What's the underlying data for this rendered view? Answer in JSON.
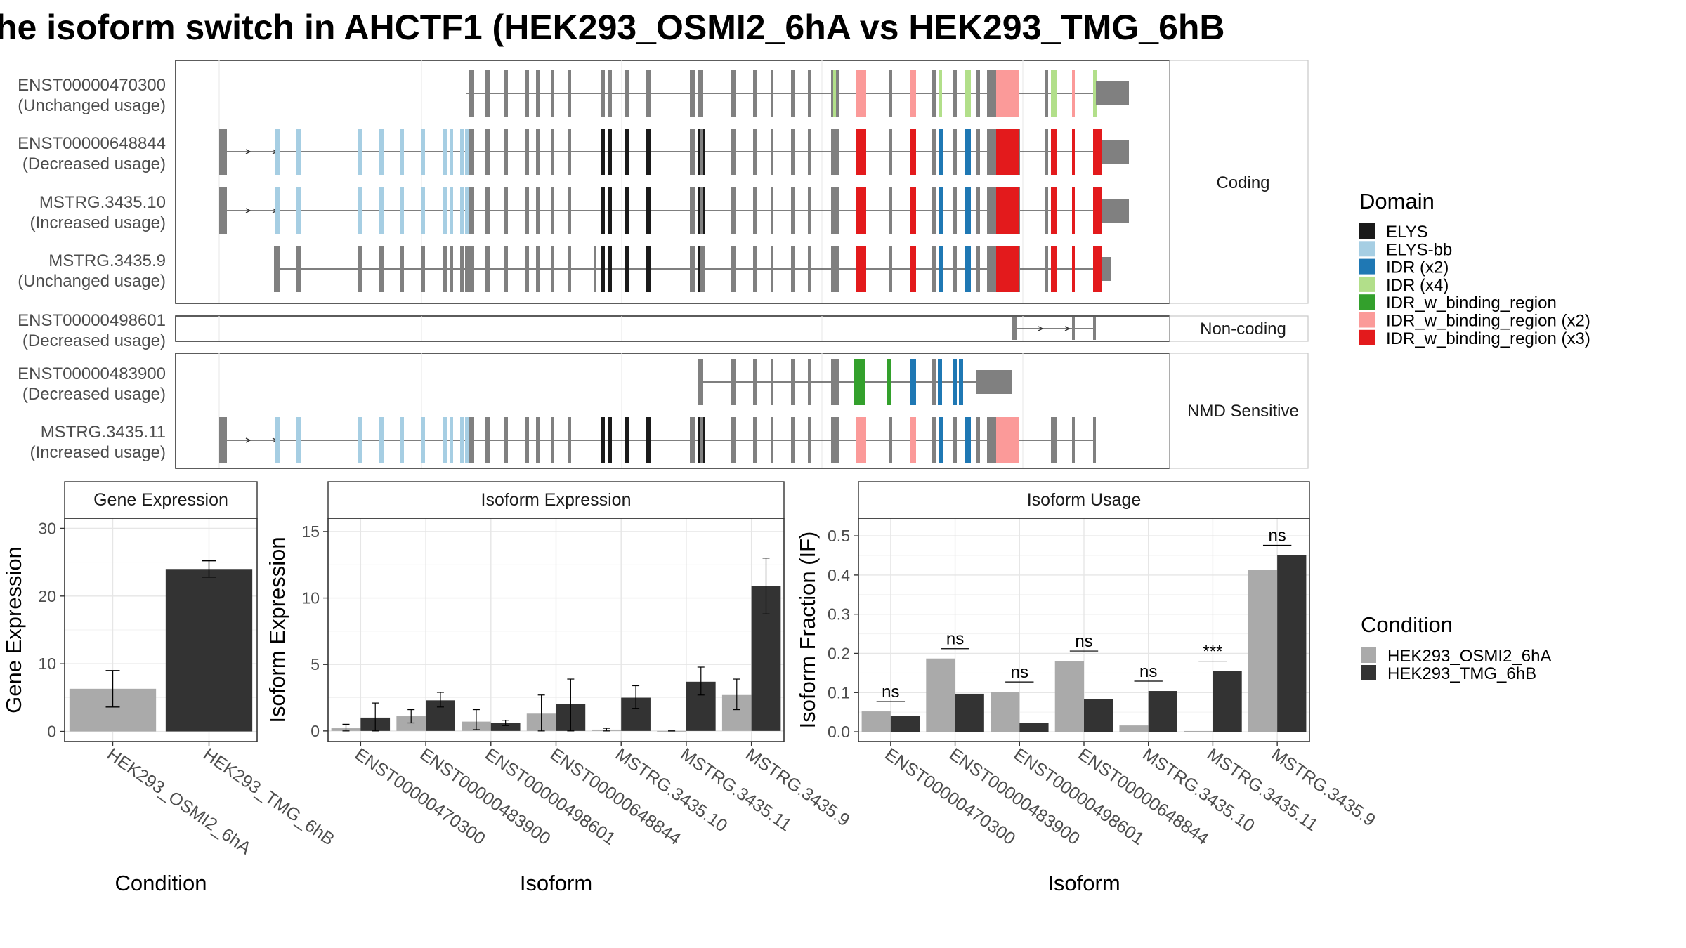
{
  "title": "he isoform switch in AHCTF1 (HEK293_OSMI2_6hA vs HEK293_TMG_6hB",
  "colors": {
    "ELYS": "#1a1a1a",
    "ELYS-bb": "#a6cee3",
    "IDR (x2)": "#1f78b4",
    "IDR (x4)": "#b2df8a",
    "IDR_w_binding_region": "#33a02c",
    "IDR_w_binding_region (x2)": "#fb9a99",
    "IDR_w_binding_region (x3)": "#e31a1c",
    "exon": "#808080",
    "osmi": "#aaaaaa",
    "tmg": "#333333"
  },
  "structure": {
    "groups": [
      "Coding",
      "Non-coding",
      "NMD Sensitive"
    ],
    "transcripts": [
      {
        "id": "ENST00000470300",
        "note": "(Unchanged usage)",
        "group": "Coding",
        "pattern": "short1"
      },
      {
        "id": "ENST00000648844",
        "note": "(Decreased usage)",
        "group": "Coding",
        "pattern": "full"
      },
      {
        "id": "MSTRG.3435.10",
        "note": "(Increased usage)",
        "group": "Coding",
        "pattern": "full"
      },
      {
        "id": "MSTRG.3435.9",
        "note": "(Unchanged usage)",
        "group": "Coding",
        "pattern": "nine"
      },
      {
        "id": "ENST00000498601",
        "note": "(Decreased usage)",
        "group": "Non-coding",
        "pattern": "noncoding"
      },
      {
        "id": "ENST00000483900",
        "note": "(Decreased usage)",
        "group": "NMD Sensitive",
        "pattern": "nmd1"
      },
      {
        "id": "MSTRG.3435.11",
        "note": "(Increased usage)",
        "group": "NMD Sensitive",
        "pattern": "full11"
      }
    ]
  },
  "legend_domain": {
    "title": "Domain",
    "items": [
      "ELYS",
      "ELYS-bb",
      "IDR (x2)",
      "IDR (x4)",
      "IDR_w_binding_region",
      "IDR_w_binding_region (x2)",
      "IDR_w_binding_region (x3)"
    ]
  },
  "legend_condition": {
    "title": "Condition",
    "items": [
      "HEK293_OSMI2_6hA",
      "HEK293_TMG_6hB"
    ]
  },
  "chart_data": [
    {
      "type": "bar",
      "title": "Gene Expression",
      "xlabel": "Condition",
      "ylabel": "Gene Expression",
      "categories": [
        "HEK293_OSMI2_6hA",
        "HEK293_TMG_6hB"
      ],
      "values": [
        6.3,
        24.0
      ],
      "error": [
        [
          3.6,
          9.0
        ],
        [
          22.8,
          25.2
        ]
      ],
      "ylim": [
        -1.5,
        31.5
      ],
      "yticks": [
        0,
        10,
        20,
        30
      ]
    },
    {
      "type": "bar",
      "title": "Isoform Expression",
      "xlabel": "Isoform",
      "ylabel": "Isoform Expression",
      "categories": [
        "ENST00000470300",
        "ENST00000483900",
        "ENST00000498601",
        "ENST00000648844",
        "MSTRG.3435.10",
        "MSTRG.3435.11",
        "MSTRG.3435.9"
      ],
      "series": [
        {
          "name": "HEK293_OSMI2_6hA",
          "values": [
            0.2,
            1.1,
            0.7,
            1.3,
            0.1,
            0.0,
            2.7
          ],
          "error": [
            [
              0.0,
              0.5
            ],
            [
              0.6,
              1.6
            ],
            [
              0.1,
              1.6
            ],
            [
              0.0,
              2.7
            ],
            [
              0.0,
              0.2
            ],
            [
              0.0,
              0.0
            ],
            [
              1.6,
              3.9
            ]
          ]
        },
        {
          "name": "HEK293_TMG_6hB",
          "values": [
            1.0,
            2.3,
            0.6,
            2.0,
            2.5,
            3.7,
            10.9
          ],
          "error": [
            [
              0.0,
              2.1
            ],
            [
              1.8,
              2.9
            ],
            [
              0.4,
              0.8
            ],
            [
              0.0,
              3.9
            ],
            [
              1.7,
              3.4
            ],
            [
              2.7,
              4.8
            ],
            [
              8.8,
              13.0
            ]
          ]
        }
      ],
      "ylim": [
        -0.8,
        16.0
      ],
      "yticks": [
        0,
        5,
        10,
        15
      ]
    },
    {
      "type": "bar",
      "title": "Isoform Usage",
      "xlabel": "Isoform",
      "ylabel": "Isoform Fraction (IF)",
      "categories": [
        "ENST00000470300",
        "ENST00000483900",
        "ENST00000498601",
        "ENST00000648844",
        "MSTRG.3435.10",
        "MSTRG.3435.11",
        "MSTRG.3435.9"
      ],
      "series": [
        {
          "name": "HEK293_OSMI2_6hA",
          "values": [
            0.052,
            0.187,
            0.102,
            0.181,
            0.016,
            0.002,
            0.414
          ]
        },
        {
          "name": "HEK293_TMG_6hB",
          "values": [
            0.04,
            0.097,
            0.023,
            0.084,
            0.104,
            0.155,
            0.451
          ]
        }
      ],
      "significance": [
        "ns",
        "ns",
        "ns",
        "ns",
        "ns",
        "***",
        "ns"
      ],
      "ylim": [
        -0.025,
        0.545
      ],
      "yticks": [
        0.0,
        0.1,
        0.2,
        0.3,
        0.4,
        0.5
      ],
      "ytick_labels": [
        "0.0",
        "0.1",
        "0.2",
        "0.3",
        "0.4",
        "0.5"
      ]
    }
  ]
}
